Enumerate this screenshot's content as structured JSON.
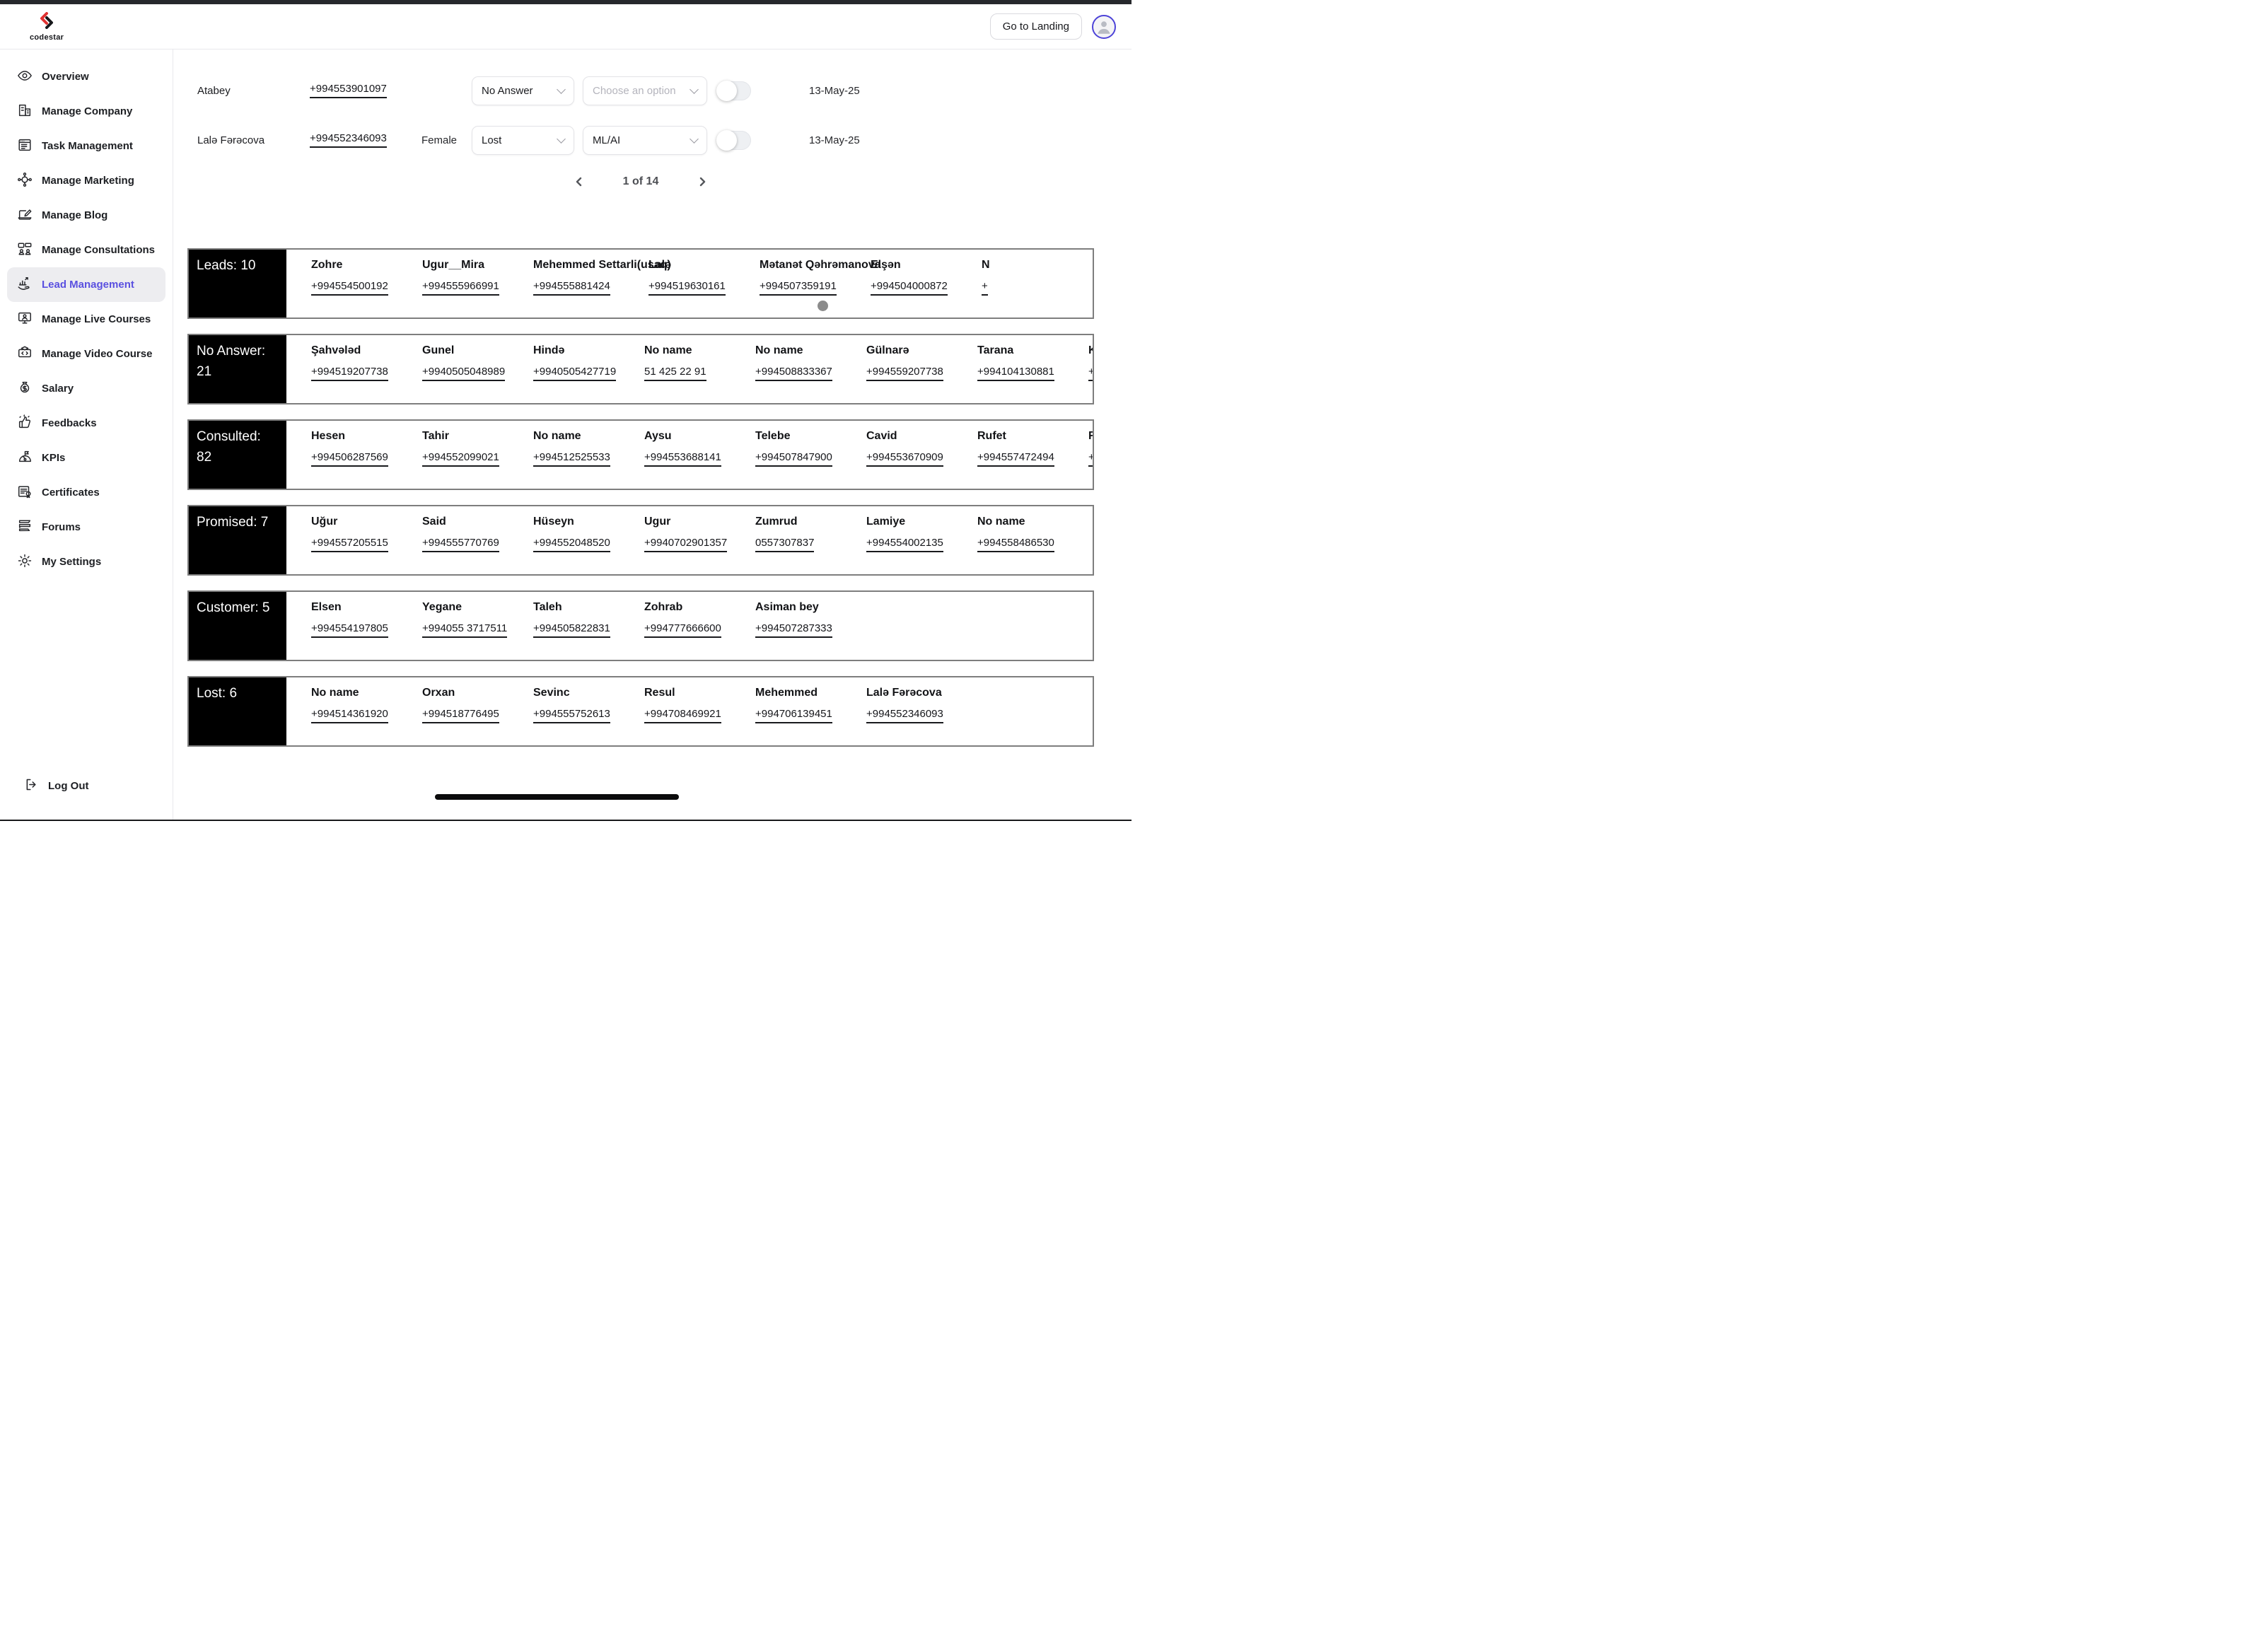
{
  "header": {
    "logo": "codestar",
    "go_to_landing": "Go to Landing"
  },
  "accent_colors": {
    "active_link": "#5a50e0",
    "avatar_ring": "#4d43d8",
    "section_label_bg": "#000000"
  },
  "sidebar": {
    "items": [
      {
        "label": "Overview",
        "icon": "eye",
        "active": false
      },
      {
        "label": "Manage Company",
        "icon": "building",
        "active": false
      },
      {
        "label": "Task Management",
        "icon": "task",
        "active": false
      },
      {
        "label": "Manage Marketing",
        "icon": "network",
        "active": false
      },
      {
        "label": "Manage Blog",
        "icon": "blog",
        "active": false
      },
      {
        "label": "Manage Consultations",
        "icon": "consult",
        "active": false
      },
      {
        "label": "Lead Management",
        "icon": "lead-chart",
        "active": true
      },
      {
        "label": "Manage Live Courses",
        "icon": "live-course",
        "active": false
      },
      {
        "label": "Manage Video Course",
        "icon": "video-course",
        "active": false
      },
      {
        "label": "Salary",
        "icon": "money",
        "active": false
      },
      {
        "label": "Feedbacks",
        "icon": "thumbs-up",
        "active": false
      },
      {
        "label": "KPIs",
        "icon": "gauge",
        "active": false
      },
      {
        "label": "Certificates",
        "icon": "certificate",
        "active": false
      },
      {
        "label": "Forums",
        "icon": "forum",
        "active": false
      },
      {
        "label": "My Settings",
        "icon": "gear",
        "active": false
      }
    ],
    "logout": "Log Out"
  },
  "lead_rows": [
    {
      "name": "Atabey",
      "phone": "+994553901097",
      "gender": "",
      "status": "No Answer",
      "category": "Choose an option",
      "category_is_placeholder": true,
      "toggle_on": false,
      "date": "13-May-25"
    },
    {
      "name": "Lalə Fərəcova",
      "phone": "+994552346093",
      "gender": "Female",
      "status": "Lost",
      "category": "ML/AI",
      "category_is_placeholder": false,
      "toggle_on": false,
      "date": "13-May-25"
    }
  ],
  "pagination": {
    "label": "1 of 14"
  },
  "sections": [
    {
      "label": "Leads: 10",
      "entries": [
        {
          "name": "Zohre",
          "phone": "+994554500192"
        },
        {
          "name": "Ugur__Mira",
          "phone": "+994555966991"
        },
        {
          "name": "Mehemmed Settarli(usaq)",
          "phone": "+994555881424"
        },
        {
          "name": "Lalə",
          "phone": "+994519630161"
        },
        {
          "name": "Mətanət Qəhrəmanova",
          "phone": "+994507359191"
        },
        {
          "name": "Elşən",
          "phone": "+994504000872"
        },
        {
          "name": "N",
          "phone": "+",
          "partial": true
        }
      ]
    },
    {
      "label": "No Answer: 21",
      "entries": [
        {
          "name": "Şahvələd",
          "phone": "+994519207738"
        },
        {
          "name": "Gunel",
          "phone": "+9940505048989"
        },
        {
          "name": "Hində",
          "phone": "+9940505427719"
        },
        {
          "name": "No name",
          "phone": "51 425 22 91"
        },
        {
          "name": "No name",
          "phone": "+994508833367"
        },
        {
          "name": "Gülnarə",
          "phone": "+994559207738"
        },
        {
          "name": "Tarana",
          "phone": "+994104130881"
        },
        {
          "name": "K",
          "phone": "+",
          "partial": true
        }
      ]
    },
    {
      "label": "Consulted: 82",
      "entries": [
        {
          "name": "Hesen",
          "phone": "+994506287569"
        },
        {
          "name": "Tahir",
          "phone": "+994552099021"
        },
        {
          "name": "No name",
          "phone": "+994512525533"
        },
        {
          "name": "Aysu",
          "phone": "+994553688141"
        },
        {
          "name": "Telebe",
          "phone": "+994507847900"
        },
        {
          "name": "Cavid",
          "phone": "+994553670909"
        },
        {
          "name": "Rufet",
          "phone": "+994557472494"
        },
        {
          "name": "R",
          "phone": "+",
          "partial": true
        }
      ]
    },
    {
      "label": "Promised: 7",
      "entries": [
        {
          "name": "Uğur",
          "phone": "+994557205515"
        },
        {
          "name": "Said",
          "phone": "+994555770769"
        },
        {
          "name": "Hüseyn",
          "phone": "+994552048520"
        },
        {
          "name": "Ugur",
          "phone": "+9940702901357"
        },
        {
          "name": "Zumrud",
          "phone": "0557307837"
        },
        {
          "name": "Lamiye",
          "phone": "+994554002135"
        },
        {
          "name": "No name",
          "phone": "+994558486530"
        }
      ]
    },
    {
      "label": "Customer: 5",
      "entries": [
        {
          "name": "Elsen",
          "phone": "+994554197805"
        },
        {
          "name": "Yegane",
          "phone": "+994055 3717511"
        },
        {
          "name": "Taleh",
          "phone": "+994505822831"
        },
        {
          "name": "Zohrab",
          "phone": "+994777666600"
        },
        {
          "name": "Asiman bey",
          "phone": "+994507287333"
        }
      ]
    },
    {
      "label": "Lost: 6",
      "entries": [
        {
          "name": "No name",
          "phone": "+994514361920"
        },
        {
          "name": "Orxan",
          "phone": "+994518776495"
        },
        {
          "name": "Sevinc",
          "phone": "+994555752613"
        },
        {
          "name": "Resul",
          "phone": "+994708469921"
        },
        {
          "name": "Mehemmed",
          "phone": "+994706139451"
        },
        {
          "name": "Lalə Fərəcova",
          "phone": "+994552346093"
        }
      ]
    }
  ]
}
